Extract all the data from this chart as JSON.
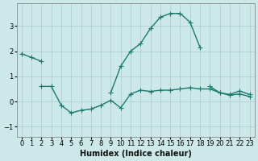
{
  "xlabel": "Humidex (Indice chaleur)",
  "background_color": "#cce8e8",
  "grid_color": "#aacccc",
  "line_color": "#1a7a6e",
  "xlim": [
    -0.5,
    23.5
  ],
  "ylim": [
    -1.4,
    3.9
  ],
  "yticks": [
    -1,
    0,
    1,
    2,
    3
  ],
  "xticks": [
    0,
    1,
    2,
    3,
    4,
    5,
    6,
    7,
    8,
    9,
    10,
    11,
    12,
    13,
    14,
    15,
    16,
    17,
    18,
    19,
    20,
    21,
    22,
    23
  ],
  "series": [
    {
      "x": [
        0,
        1,
        2
      ],
      "y": [
        1.9,
        1.75,
        1.6
      ]
    },
    {
      "x": [
        2,
        3,
        4,
        5,
        6,
        7,
        8,
        9,
        10,
        11,
        12,
        13,
        14,
        15,
        16,
        17,
        18,
        19,
        20,
        21,
        22,
        23
      ],
      "y": [
        0.6,
        0.6,
        -0.15,
        -0.45,
        -0.35,
        -0.3,
        -0.15,
        0.05,
        -0.25,
        0.3,
        0.45,
        0.4,
        0.45,
        0.45,
        0.5,
        0.55,
        0.5,
        0.5,
        0.35,
        0.25,
        0.3,
        0.2
      ]
    },
    {
      "x": [
        9,
        10,
        11,
        12,
        13,
        14,
        15,
        16,
        17,
        18
      ],
      "y": [
        0.35,
        1.4,
        2.0,
        2.3,
        2.9,
        3.35,
        3.5,
        3.5,
        3.15,
        2.15
      ]
    },
    {
      "x": [
        19,
        20,
        21,
        22,
        23
      ],
      "y": [
        0.6,
        0.35,
        0.28,
        0.42,
        0.28
      ]
    }
  ],
  "marker": "+",
  "markersize": 4,
  "linewidth": 1.0,
  "fontsize_xlabel": 7,
  "tick_fontsize": 6
}
